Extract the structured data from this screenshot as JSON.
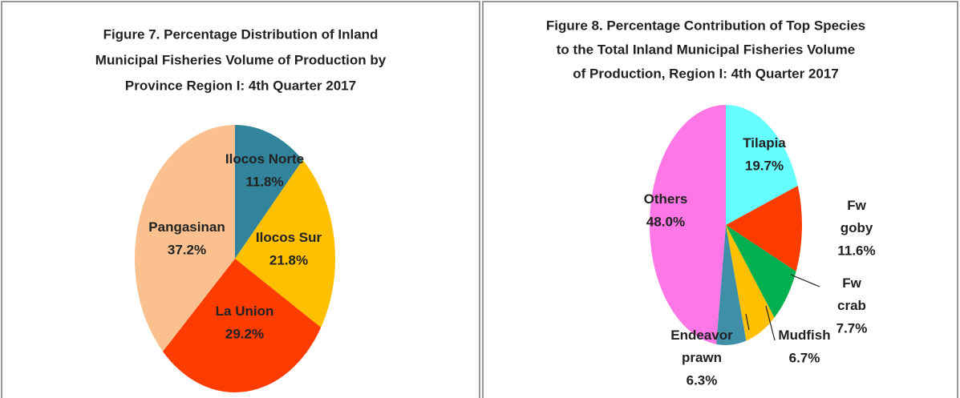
{
  "chart_data": [
    {
      "type": "pie",
      "title": [
        "Figure 7. Percentage Distribution  of Inland",
        "Municipal  Fisheries Volume of Production by",
        "Province Region I: 4th Quarter 2017"
      ],
      "categories": [
        "Ilocos Norte",
        "Ilocos Sur",
        "La Union",
        "Pangasinan"
      ],
      "values": [
        11.8,
        21.8,
        29.2,
        37.2
      ],
      "value_labels": [
        "11.8%",
        "21.8%",
        "29.2%",
        "37.2%"
      ],
      "colors": [
        "#31849b",
        "#ffc000",
        "#ff3c00",
        "#fac090"
      ]
    },
    {
      "type": "pie",
      "title": [
        "Figure 8. Percentage Contribution of Top Species",
        "to the Total Inland Municipal Fisheries Volume",
        "of Production, Region I: 4th Quarter 2017"
      ],
      "categories": [
        "Tilapia",
        "Fw goby",
        "Fw crab",
        "Mudfish",
        "Endeavor prawn",
        "Others"
      ],
      "values": [
        19.7,
        11.6,
        7.7,
        6.7,
        6.3,
        48.0
      ],
      "value_labels": [
        "19.7%",
        "11.6%",
        "7.7%",
        "6.7%",
        "6.3%",
        "48.0%"
      ],
      "colors": [
        "#66ffff",
        "#ff3c00",
        "#00b050",
        "#ffc000",
        "#3f8fa8",
        "#ff77e6"
      ]
    }
  ]
}
